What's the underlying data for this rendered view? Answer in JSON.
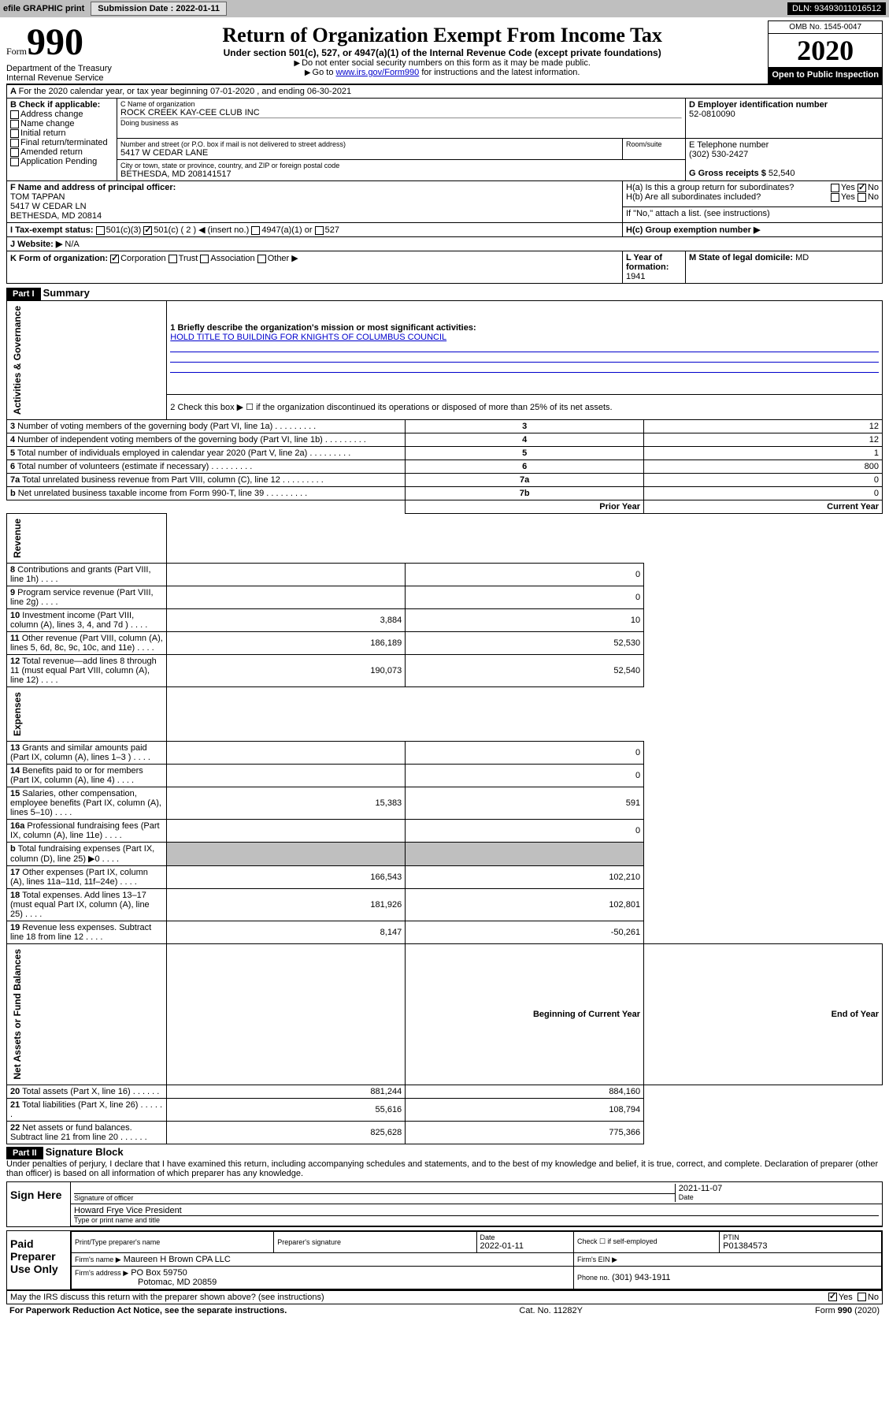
{
  "header_bar": {
    "efile": "efile GRAPHIC print",
    "submission_label": "Submission Date :",
    "submission_date": "2022-01-11",
    "dln_label": "DLN:",
    "dln": "93493011016512"
  },
  "title": {
    "form_prefix": "Form",
    "form_num": "990",
    "main": "Return of Organization Exempt From Income Tax",
    "sub": "Under section 501(c), 527, or 4947(a)(1) of the Internal Revenue Code (except private foundations)",
    "inst1": "Do not enter social security numbers on this form as it may be made public.",
    "inst2_prefix": "Go to ",
    "inst2_link": "www.irs.gov/Form990",
    "inst2_suffix": " for instructions and the latest information.",
    "dept": "Department of the Treasury\nInternal Revenue Service",
    "omb": "OMB No. 1545-0047",
    "year": "2020",
    "open_pub": "Open to Public Inspection"
  },
  "block_a": {
    "text": "For the 2020 calendar year, or tax year beginning 07-01-2020    , and ending 06-30-2021"
  },
  "block_b": {
    "label": "B Check if applicable:",
    "items": [
      "Address change",
      "Name change",
      "Initial return",
      "Final return/terminated",
      "Amended return",
      "Application Pending"
    ]
  },
  "block_c": {
    "name_label": "C Name of organization",
    "name": "ROCK CREEK KAY-CEE CLUB INC",
    "dba_label": "Doing business as",
    "addr_label": "Number and street (or P.O. box if mail is not delivered to street address)",
    "room_label": "Room/suite",
    "addr": "5417 W CEDAR LANE",
    "city_label": "City or town, state or province, country, and ZIP or foreign postal code",
    "city": "BETHESDA, MD  208141517"
  },
  "block_d": {
    "label": "D Employer identification number",
    "value": "52-0810090"
  },
  "block_e": {
    "label": "E Telephone number",
    "value": "(302) 530-2427"
  },
  "block_g": {
    "label": "G Gross receipts $",
    "value": "52,540"
  },
  "block_f": {
    "label": "F Name and address of principal officer:",
    "name": "TOM TAPPAN",
    "addr1": "5417 W CEDAR LN",
    "addr2": "BETHESDA, MD  20814"
  },
  "block_h": {
    "a": "H(a)  Is this a group return for subordinates?",
    "b": "H(b)  Are all subordinates included?",
    "b_note": "If \"No,\" attach a list. (see instructions)",
    "c": "H(c)  Group exemption number ▶",
    "yes": "Yes",
    "no": "No"
  },
  "block_i": {
    "label": "I  Tax-exempt status:",
    "opts": [
      "501(c)(3)",
      "501(c) ( 2 ) ◀ (insert no.)",
      "4947(a)(1) or",
      "527"
    ]
  },
  "block_j": {
    "label": "J  Website: ▶",
    "value": "N/A"
  },
  "block_k": {
    "label": "K Form of organization:",
    "opts": [
      "Corporation",
      "Trust",
      "Association",
      "Other ▶"
    ]
  },
  "block_l": {
    "label": "L Year of formation:",
    "value": "1941"
  },
  "block_m": {
    "label": "M State of legal domicile:",
    "value": "MD"
  },
  "part1": {
    "hdr": "Part I",
    "title": "Summary",
    "q1_label": "1  Briefly describe the organization's mission or most significant activities:",
    "q1_value": "HOLD TITLE TO BUILDING FOR KNIGHTS OF COLUMBUS COUNCIL",
    "q2": "2   Check this box ▶ ☐  if the organization discontinued its operations or disposed of more than 25% of its net assets.",
    "side_ag": "Activities & Governance",
    "side_rev": "Revenue",
    "side_exp": "Expenses",
    "side_na": "Net Assets or Fund Balances",
    "rows_gov": [
      {
        "n": "3",
        "t": "Number of voting members of the governing body (Part VI, line 1a)",
        "rn": "3",
        "v": "12"
      },
      {
        "n": "4",
        "t": "Number of independent voting members of the governing body (Part VI, line 1b)",
        "rn": "4",
        "v": "12"
      },
      {
        "n": "5",
        "t": "Total number of individuals employed in calendar year 2020 (Part V, line 2a)",
        "rn": "5",
        "v": "1"
      },
      {
        "n": "6",
        "t": "Total number of volunteers (estimate if necessary)",
        "rn": "6",
        "v": "800"
      },
      {
        "n": "7a",
        "t": "Total unrelated business revenue from Part VIII, column (C), line 12",
        "rn": "7a",
        "v": "0"
      },
      {
        "n": "b",
        "t": "Net unrelated business taxable income from Form 990-T, line 39",
        "rn": "7b",
        "v": "0"
      }
    ],
    "hdr_prior": "Prior Year",
    "hdr_curr": "Current Year",
    "rows_rev": [
      {
        "n": "8",
        "t": "Contributions and grants (Part VIII, line 1h)",
        "p": "",
        "c": "0"
      },
      {
        "n": "9",
        "t": "Program service revenue (Part VIII, line 2g)",
        "p": "",
        "c": "0"
      },
      {
        "n": "10",
        "t": "Investment income (Part VIII, column (A), lines 3, 4, and 7d )",
        "p": "3,884",
        "c": "10"
      },
      {
        "n": "11",
        "t": "Other revenue (Part VIII, column (A), lines 5, 6d, 8c, 9c, 10c, and 11e)",
        "p": "186,189",
        "c": "52,530"
      },
      {
        "n": "12",
        "t": "Total revenue—add lines 8 through 11 (must equal Part VIII, column (A), line 12)",
        "p": "190,073",
        "c": "52,540"
      }
    ],
    "rows_exp": [
      {
        "n": "13",
        "t": "Grants and similar amounts paid (Part IX, column (A), lines 1–3 )",
        "p": "",
        "c": "0"
      },
      {
        "n": "14",
        "t": "Benefits paid to or for members (Part IX, column (A), line 4)",
        "p": "",
        "c": "0"
      },
      {
        "n": "15",
        "t": "Salaries, other compensation, employee benefits (Part IX, column (A), lines 5–10)",
        "p": "15,383",
        "c": "591"
      },
      {
        "n": "16a",
        "t": "Professional fundraising fees (Part IX, column (A), line 11e)",
        "p": "",
        "c": "0"
      },
      {
        "n": "b",
        "t": "Total fundraising expenses (Part IX, column (D), line 25) ▶0",
        "p": "grey",
        "c": "grey"
      },
      {
        "n": "17",
        "t": "Other expenses (Part IX, column (A), lines 11a–11d, 11f–24e)",
        "p": "166,543",
        "c": "102,210"
      },
      {
        "n": "18",
        "t": "Total expenses. Add lines 13–17 (must equal Part IX, column (A), line 25)",
        "p": "181,926",
        "c": "102,801"
      },
      {
        "n": "19",
        "t": "Revenue less expenses. Subtract line 18 from line 12",
        "p": "8,147",
        "c": "-50,261"
      }
    ],
    "hdr_begin": "Beginning of Current Year",
    "hdr_end": "End of Year",
    "rows_na": [
      {
        "n": "20",
        "t": "Total assets (Part X, line 16)",
        "p": "881,244",
        "c": "884,160"
      },
      {
        "n": "21",
        "t": "Total liabilities (Part X, line 26)",
        "p": "55,616",
        "c": "108,794"
      },
      {
        "n": "22",
        "t": "Net assets or fund balances. Subtract line 21 from line 20",
        "p": "825,628",
        "c": "775,366"
      }
    ]
  },
  "part2": {
    "hdr": "Part II",
    "title": "Signature Block",
    "penalty": "Under penalties of perjury, I declare that I have examined this return, including accompanying schedules and statements, and to the best of my knowledge and belief, it is true, correct, and complete. Declaration of preparer (other than officer) is based on all information of which preparer has any knowledge.",
    "sign_here": "Sign Here",
    "sig_officer_label": "Signature of officer",
    "sig_date": "2021-11-07",
    "sig_date_label": "Date",
    "officer_name": "Howard Frye  Vice President",
    "officer_name_label": "Type or print name and title",
    "paid_prep": "Paid Preparer Use Only",
    "prep_name_label": "Print/Type preparer's name",
    "prep_sig_label": "Preparer's signature",
    "prep_date_label": "Date",
    "prep_date": "2022-01-11",
    "check_self": "Check ☐ if self-employed",
    "ptin_label": "PTIN",
    "ptin": "P01384573",
    "firm_name_label": "Firm's name    ▶",
    "firm_name": "Maureen H Brown CPA LLC",
    "firm_ein_label": "Firm's EIN ▶",
    "firm_addr_label": "Firm's address ▶",
    "firm_addr1": "PO Box 59750",
    "firm_addr2": "Potomac, MD  20859",
    "phone_label": "Phone no.",
    "phone": "(301) 943-1911",
    "discuss": "May the IRS discuss this return with the preparer shown above? (see instructions)",
    "yes": "Yes",
    "no": "No"
  },
  "footer": {
    "left": "For Paperwork Reduction Act Notice, see the separate instructions.",
    "mid": "Cat. No. 11282Y",
    "right": "Form 990 (2020)"
  }
}
